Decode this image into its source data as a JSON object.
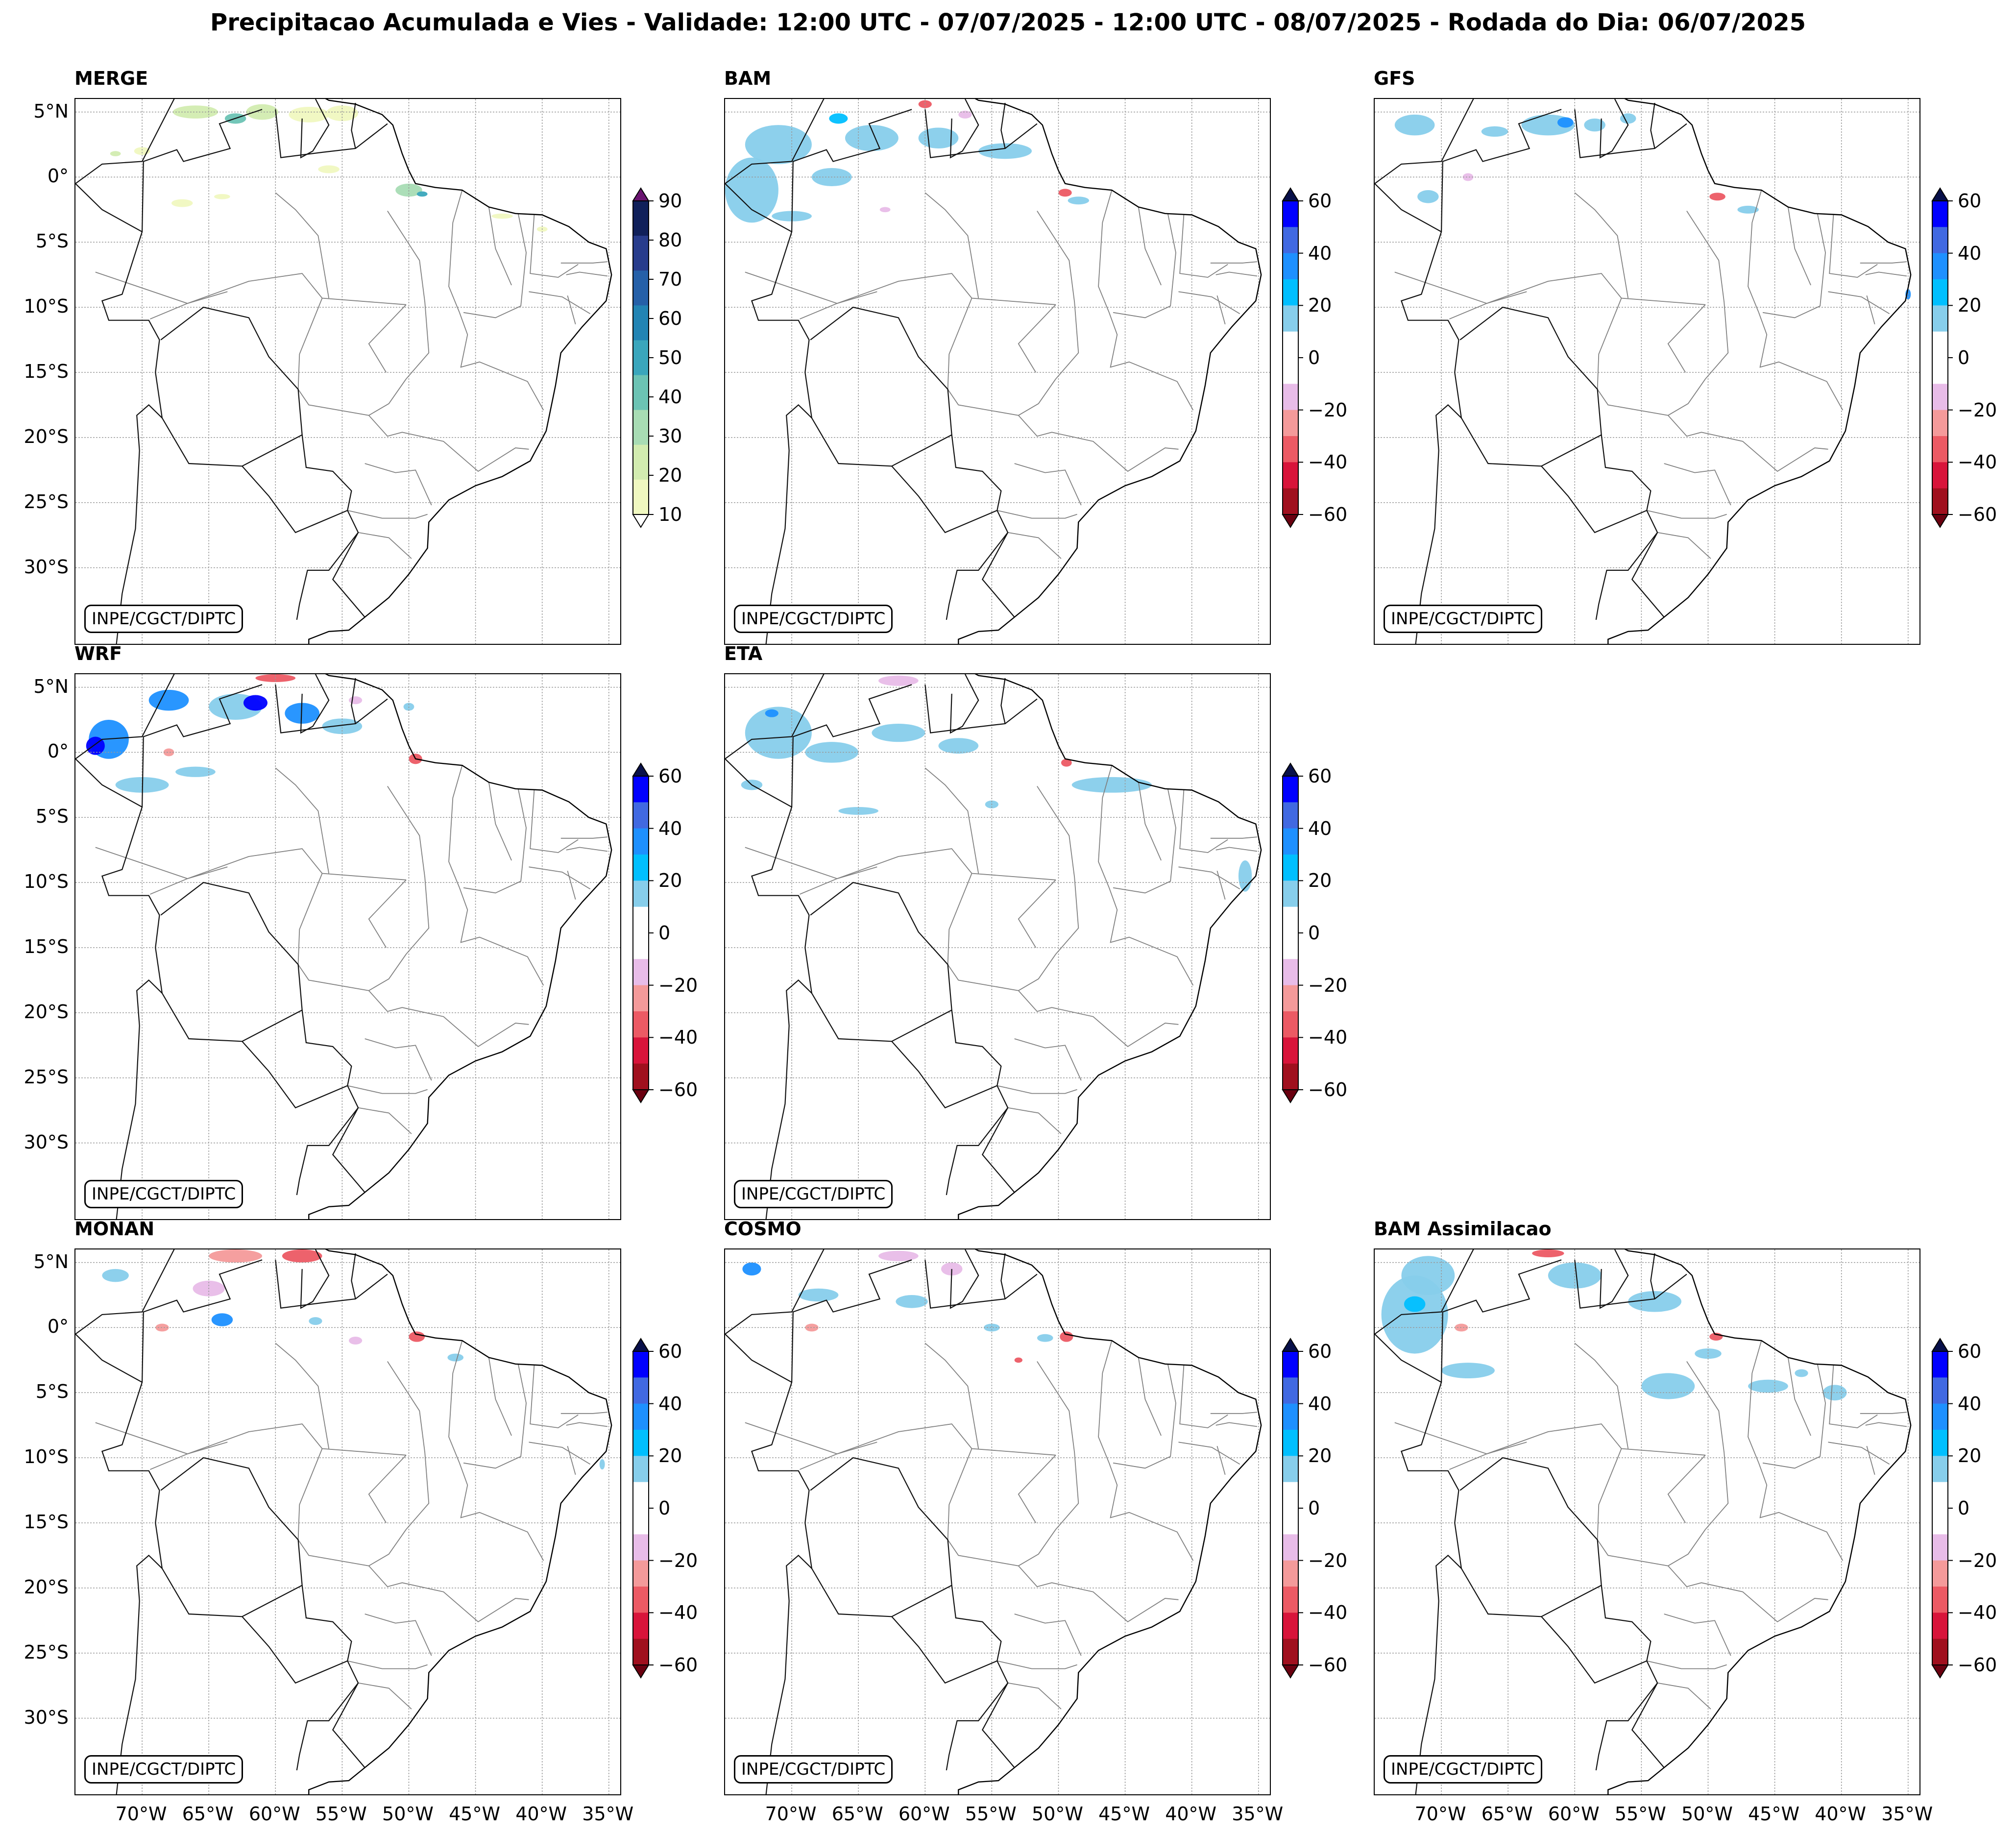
{
  "figure": {
    "title": "Precipitacao Acumulada e Vies - Validade: 12:00 UTC - 07/07/2025 - 12:00 UTC - 08/07/2025 - Rodada do Dia: 06/07/2025",
    "credit": "INPE/CGCT/DIPTC",
    "lat_ticks": [
      "5°N",
      "0°",
      "5°S",
      "10°S",
      "15°S",
      "20°S",
      "25°S",
      "30°S"
    ],
    "lon_ticks": [
      "70°W",
      "65°W",
      "60°W",
      "55°W",
      "50°W",
      "45°W",
      "40°W",
      "35°W"
    ]
  },
  "panels": [
    {
      "name": "MERGE",
      "variable": "precipitacao acumulada",
      "colorbar": "merge"
    },
    {
      "name": "BAM",
      "variable": "vies",
      "colorbar": "bias"
    },
    {
      "name": "GFS",
      "variable": "vies",
      "colorbar": "bias"
    },
    {
      "name": "WRF",
      "variable": "vies",
      "colorbar": "bias"
    },
    {
      "name": "ETA",
      "variable": "vies",
      "colorbar": "bias"
    },
    {
      "name": "MONAN",
      "variable": "vies",
      "colorbar": "bias"
    },
    {
      "name": "COSMO",
      "variable": "vies",
      "colorbar": "bias"
    },
    {
      "name": "BAM Assimilacao",
      "variable": "vies",
      "colorbar": "bias"
    }
  ],
  "colorbars": {
    "merge": {
      "ticks": [
        "90",
        "80",
        "70",
        "60",
        "50",
        "40",
        "30",
        "20",
        "10"
      ],
      "colors": [
        "#10205a",
        "#283c8c",
        "#2560a8",
        "#2284b4",
        "#3aa6bc",
        "#6cc3b4",
        "#a8dcb4",
        "#d2ecb0",
        "#f0f8c0"
      ],
      "extend_colors": {
        "max": "#6a1470",
        "min": "#ffffff"
      }
    },
    "bias": {
      "ticks": [
        "60",
        "40",
        "20",
        "0",
        "−20",
        "−40",
        "−60"
      ],
      "colors": [
        "#0000ff",
        "#4169e1",
        "#1e90ff",
        "#00bfff",
        "#87ceeb",
        "#ffffff",
        "#ffffff",
        "#e8bce8",
        "#f49a9a",
        "#ec5a64",
        "#d8143a",
        "#a0101e"
      ],
      "extend_colors": {
        "max": "#08104a",
        "min": "#6a0010"
      }
    }
  },
  "map_extent": {
    "lon": [
      -75,
      -34
    ],
    "lat": [
      -36,
      6
    ]
  }
}
